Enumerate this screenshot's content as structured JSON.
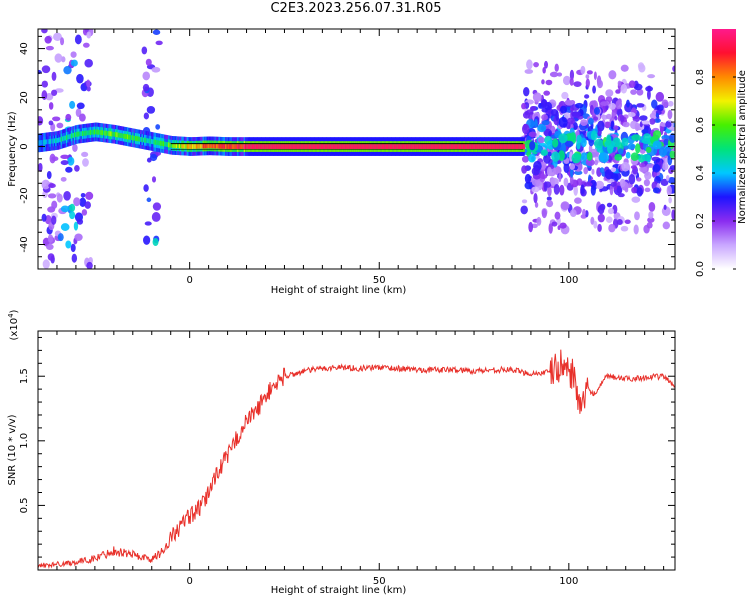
{
  "title": "C2E3.2023.256.07.31.R05",
  "chart_data": [
    {
      "type": "heatmap",
      "panel": "top",
      "xlabel": "Height of straight line (km)",
      "ylabel": "Frequency (Hz)",
      "xlim": [
        -40,
        128
      ],
      "ylim": [
        -50,
        48
      ],
      "x_ticks": [
        0,
        50,
        100
      ],
      "y_ticks": [
        -40,
        -20,
        0,
        20,
        40
      ],
      "colorbar": {
        "label": "Normalized spectral amplitude",
        "range": [
          0,
          1
        ],
        "ticks": [
          "0.0",
          "0.2",
          "0.4",
          "0.6",
          "0.8"
        ],
        "colors": [
          "#ffffff",
          "#c9a7ff",
          "#8a2cf0",
          "#1d14ff",
          "#00c8ff",
          "#00e37a",
          "#46f000",
          "#f2f200",
          "#ff8a00",
          "#ff1030",
          "#ff1a8c"
        ]
      },
      "carrier_track": {
        "frequency_hz": 0,
        "points": [
          {
            "x": -40,
            "f": 1.5,
            "a": 0.35
          },
          {
            "x": -35,
            "f": 2.5,
            "a": 0.45
          },
          {
            "x": -30,
            "f": 5.0,
            "a": 0.5
          },
          {
            "x": -25,
            "f": 6.0,
            "a": 0.55
          },
          {
            "x": -20,
            "f": 5.0,
            "a": 0.6
          },
          {
            "x": -15,
            "f": 3.5,
            "a": 0.55
          },
          {
            "x": -10,
            "f": 2.0,
            "a": 0.45
          },
          {
            "x": -5,
            "f": 0.5,
            "a": 0.6
          },
          {
            "x": 0,
            "f": 0.0,
            "a": 0.75
          },
          {
            "x": 5,
            "f": 0.3,
            "a": 0.85
          },
          {
            "x": 10,
            "f": 0.0,
            "a": 0.85
          },
          {
            "x": 15,
            "f": 0.0,
            "a": 0.95
          },
          {
            "x": 88,
            "f": 0.0,
            "a": 0.95
          }
        ],
        "noisy_region_after_km": 88
      }
    },
    {
      "type": "line",
      "panel": "bottom",
      "xlabel": "Height of straight line (km)",
      "ylabel": "SNR (10 * v/v)",
      "y_multiplier": "(x10",
      "y_multiplier_exp": "4",
      "xlim": [
        -40,
        128
      ],
      "ylim": [
        0,
        18500
      ],
      "x_ticks": [
        0,
        50,
        100
      ],
      "y_ticks": [
        {
          "value": 5000,
          "label": "0.5"
        },
        {
          "value": 10000,
          "label": "1.0"
        },
        {
          "value": 15000,
          "label": "1.5"
        }
      ],
      "color": "#e8302a",
      "series": [
        {
          "x": [
            -40,
            -30,
            -25,
            -20,
            -15,
            -10,
            -7,
            -5,
            -2,
            0,
            3,
            5,
            7,
            10,
            12,
            15,
            18,
            20,
            23,
            25,
            28,
            30,
            35,
            40,
            45,
            50,
            55,
            60,
            65,
            70,
            75,
            80,
            85,
            88,
            90,
            95,
            98,
            100,
            102,
            103,
            105,
            107,
            110,
            115,
            120,
            125,
            128
          ],
          "y": [
            300,
            600,
            900,
            1500,
            1200,
            800,
            1500,
            2500,
            3500,
            4200,
            4800,
            6000,
            7500,
            8800,
            10000,
            11500,
            12500,
            13500,
            14500,
            15000,
            15200,
            15400,
            15600,
            15700,
            15600,
            15700,
            15600,
            15500,
            15500,
            15500,
            15400,
            15500,
            15500,
            15300,
            15200,
            15300,
            15800,
            15600,
            14500,
            12000,
            14000,
            13600,
            15000,
            14800,
            14900,
            15000,
            14200
          ]
        }
      ]
    }
  ]
}
